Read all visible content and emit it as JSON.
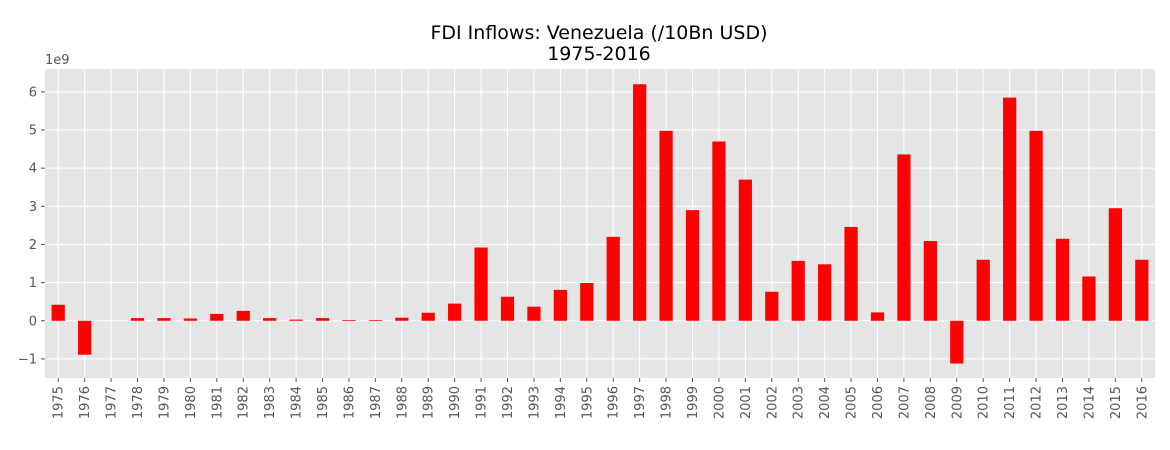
{
  "chart_data": {
    "type": "bar",
    "title": "FDI Inflows: Venezuela (/10Bn USD)",
    "subtitle": "1975-2016",
    "xlabel": "",
    "ylabel": "",
    "y_offset_label": "1e9",
    "ylim": [
      -1.5,
      6.6
    ],
    "y_ticks": [
      -1,
      0,
      1,
      2,
      3,
      4,
      5,
      6
    ],
    "y_tick_labels": [
      "−1",
      "0",
      "1",
      "2",
      "3",
      "4",
      "5",
      "6"
    ],
    "grid": true,
    "bar_color": "#ff0000",
    "background_color": "#e5e5e5",
    "categories": [
      "1975",
      "1976",
      "1977",
      "1978",
      "1979",
      "1980",
      "1981",
      "1982",
      "1983",
      "1984",
      "1985",
      "1986",
      "1987",
      "1988",
      "1989",
      "1990",
      "1991",
      "1992",
      "1993",
      "1994",
      "1995",
      "1996",
      "1997",
      "1998",
      "1999",
      "2000",
      "2001",
      "2002",
      "2003",
      "2004",
      "2005",
      "2006",
      "2007",
      "2008",
      "2009",
      "2010",
      "2011",
      "2012",
      "2013",
      "2014",
      "2015",
      "2016"
    ],
    "values": [
      0.42,
      -0.89,
      0.0,
      0.07,
      0.07,
      0.06,
      0.18,
      0.26,
      0.07,
      0.03,
      0.07,
      0.02,
      0.02,
      0.08,
      0.21,
      0.45,
      1.92,
      0.63,
      0.37,
      0.81,
      0.99,
      2.2,
      6.2,
      4.98,
      2.9,
      4.7,
      3.7,
      0.76,
      1.57,
      1.48,
      2.46,
      0.22,
      4.36,
      2.09,
      -1.12,
      1.6,
      5.85,
      4.98,
      2.15,
      1.16,
      2.95,
      1.6
    ]
  }
}
